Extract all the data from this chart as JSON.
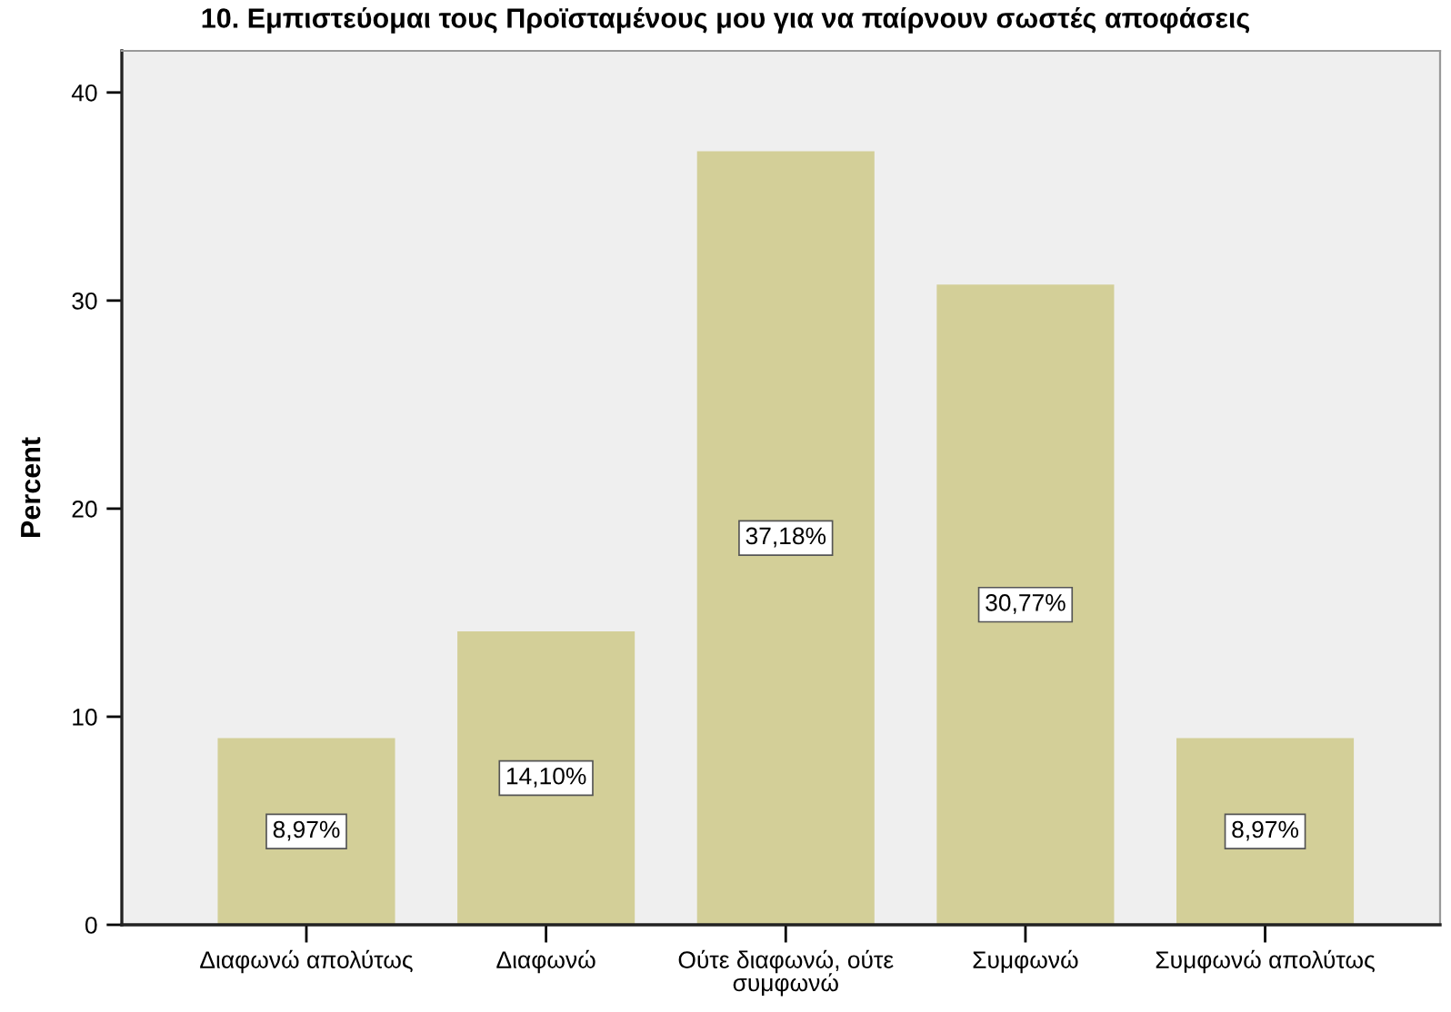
{
  "chart_data": {
    "type": "bar",
    "title": "10. Εμπιστεύομαι τους Προϊσταμένους μου για να παίρνουν σωστές αποφάσεις",
    "ylabel": "Percent",
    "categories": [
      "Διαφωνώ απολύτως",
      "Διαφωνώ",
      "Ούτε διαφωνώ, ούτε\nσυμφωνώ",
      "Συμφωνώ",
      "Συμφωνώ απολύτως"
    ],
    "values": [
      8.97,
      14.1,
      37.18,
      30.77,
      8.97
    ],
    "value_labels": [
      "8,97%",
      "14,10%",
      "37,18%",
      "30,77%",
      "8,97%"
    ],
    "color": "#d3cf98",
    "ylim": [
      0,
      42
    ],
    "yticks": [
      0,
      10,
      20,
      30,
      40
    ],
    "grid": false,
    "legend": false
  }
}
